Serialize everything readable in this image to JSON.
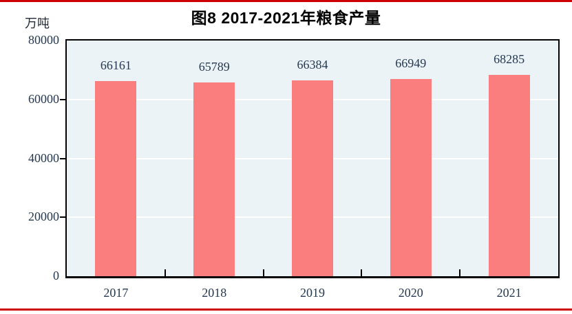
{
  "page": {
    "unit_label": "万吨"
  },
  "chart_data": {
    "type": "bar",
    "title": "图8  2017-2021年粮食产量",
    "unit": "万吨",
    "xlabel": "",
    "ylabel": "万吨",
    "categories": [
      "2017",
      "2018",
      "2019",
      "2020",
      "2021"
    ],
    "values": [
      66161,
      65789,
      66384,
      66949,
      68285
    ],
    "ylim": [
      0,
      80000
    ],
    "y_ticks": [
      0,
      20000,
      40000,
      60000,
      80000
    ],
    "gridline_values": [
      20000,
      40000,
      60000
    ],
    "grid": true,
    "legend_position": "none",
    "data_labels": true,
    "colors": {
      "bar_fill": "#fb7e7e",
      "plot_background": "#ebf3f7",
      "gridline": "#ffffff",
      "axis": "#000000",
      "label_text": "#253850",
      "title_text": "#000000",
      "page_rule": "#cc0000"
    }
  }
}
